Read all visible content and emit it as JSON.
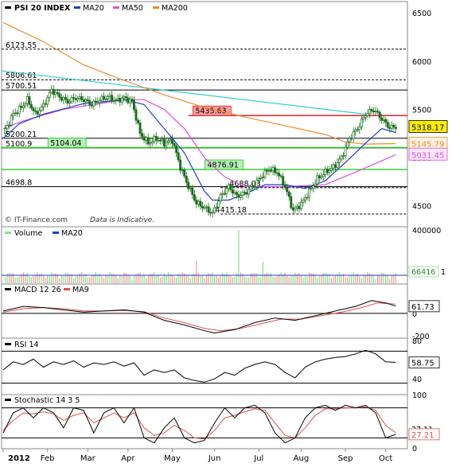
{
  "chart_data": [
    {
      "type": "candlestick",
      "title": "PSI 20 INDEX",
      "legend": [
        {
          "name": "PSI 20 INDEX",
          "color": "#000000"
        },
        {
          "name": "MA20",
          "color": "#1c3fd6"
        },
        {
          "name": "MA50",
          "color": "#e14fe1"
        },
        {
          "name": "MA200",
          "color": "#f08a2a"
        }
      ],
      "ylim": [
        4300,
        6600
      ],
      "y_ticks": [
        4500,
        5000,
        5500,
        6000,
        6500
      ],
      "x_ticks": [
        "2012",
        "Feb",
        "Mar",
        "Apr",
        "May",
        "Jun",
        "Jul",
        "Aug",
        "Sep",
        "Oct"
      ],
      "levels": [
        {
          "label": "6123.55",
          "value": 6123.55,
          "color": "#000000",
          "dashed": true
        },
        {
          "label": "5806.61",
          "value": 5806.61,
          "color": "#000000",
          "dashed": true
        },
        {
          "label": "5700.51",
          "value": 5700.51,
          "color": "#000000",
          "dashed": false
        },
        {
          "label": "5200.21",
          "value": 5200.21,
          "color": "#000000",
          "dashed": false
        },
        {
          "label": "5100.9",
          "value": 5100.9,
          "color": "#000000",
          "dashed": false
        },
        {
          "label": "4698.8",
          "value": 4698.8,
          "color": "#000000",
          "dashed": false
        },
        {
          "label": "5435.63",
          "value": 5435.63,
          "color": "#e52222",
          "dashed": false
        },
        {
          "label": "5104.04",
          "value": 5104.04,
          "color": "#22cc22",
          "dashed": false
        },
        {
          "label": "4876.91",
          "value": 4876.91,
          "color": "#22cc22",
          "dashed": false
        },
        {
          "label": "4688.08",
          "value": 4688.08,
          "color": "#000000",
          "dashed": true
        },
        {
          "label": "4415.18",
          "value": 4415.18,
          "color": "#000000",
          "dashed": true
        }
      ],
      "last_values": [
        {
          "label": "5318.17",
          "value": 5318.17,
          "bg": "#ffee00"
        },
        {
          "label": "5145.79",
          "value": 5145.79,
          "bg": "#fff2e0"
        },
        {
          "label": "5031.45",
          "value": 5031.45,
          "bg": "#fbe8fb"
        }
      ],
      "trendline": {
        "from": 5900,
        "to": 5450,
        "color": "#33cccc"
      },
      "close_path": [
        [
          0,
          5250
        ],
        [
          5,
          5450
        ],
        [
          9,
          5520
        ],
        [
          12,
          5600
        ],
        [
          16,
          5450
        ],
        [
          20,
          5540
        ],
        [
          24,
          5700
        ],
        [
          28,
          5630
        ],
        [
          32,
          5580
        ],
        [
          36,
          5620
        ],
        [
          40,
          5600
        ],
        [
          44,
          5550
        ],
        [
          48,
          5600
        ],
        [
          52,
          5630
        ],
        [
          56,
          5590
        ],
        [
          60,
          5620
        ],
        [
          64,
          5580
        ],
        [
          68,
          5250
        ],
        [
          72,
          5150
        ],
        [
          76,
          5200
        ],
        [
          80,
          5150
        ],
        [
          84,
          5180
        ],
        [
          88,
          4900
        ],
        [
          92,
          4700
        ],
        [
          96,
          4530
        ],
        [
          100,
          4480
        ],
        [
          104,
          4420
        ],
        [
          108,
          4600
        ],
        [
          112,
          4700
        ],
        [
          116,
          4600
        ],
        [
          120,
          4630
        ],
        [
          124,
          4700
        ],
        [
          128,
          4800
        ],
        [
          132,
          4880
        ],
        [
          136,
          4850
        ],
        [
          140,
          4700
        ],
        [
          144,
          4450
        ],
        [
          148,
          4520
        ],
        [
          152,
          4650
        ],
        [
          156,
          4780
        ],
        [
          160,
          4850
        ],
        [
          164,
          4900
        ],
        [
          168,
          5000
        ],
        [
          172,
          5200
        ],
        [
          176,
          5300
        ],
        [
          180,
          5450
        ],
        [
          184,
          5500
        ],
        [
          188,
          5400
        ],
        [
          192,
          5310
        ],
        [
          195,
          5318
        ]
      ],
      "ma20_path": [
        [
          0,
          5200
        ],
        [
          8,
          5350
        ],
        [
          20,
          5450
        ],
        [
          40,
          5560
        ],
        [
          60,
          5600
        ],
        [
          70,
          5550
        ],
        [
          80,
          5300
        ],
        [
          90,
          5050
        ],
        [
          100,
          4650
        ],
        [
          104,
          4560
        ],
        [
          112,
          4560
        ],
        [
          120,
          4620
        ],
        [
          130,
          4720
        ],
        [
          140,
          4720
        ],
        [
          150,
          4680
        ],
        [
          160,
          4760
        ],
        [
          170,
          4950
        ],
        [
          180,
          5150
        ],
        [
          188,
          5300
        ],
        [
          195,
          5260
        ]
      ],
      "ma50_path": [
        [
          0,
          5300
        ],
        [
          10,
          5380
        ],
        [
          30,
          5500
        ],
        [
          60,
          5600
        ],
        [
          70,
          5600
        ],
        [
          80,
          5500
        ],
        [
          90,
          5300
        ],
        [
          100,
          5000
        ],
        [
          110,
          4800
        ],
        [
          120,
          4700
        ],
        [
          140,
          4700
        ],
        [
          160,
          4720
        ],
        [
          175,
          4850
        ],
        [
          195,
          5030
        ]
      ],
      "ma200_path": [
        [
          0,
          6400
        ],
        [
          20,
          6200
        ],
        [
          40,
          5960
        ],
        [
          60,
          5800
        ],
        [
          80,
          5650
        ],
        [
          100,
          5520
        ],
        [
          120,
          5420
        ],
        [
          140,
          5330
        ],
        [
          160,
          5240
        ],
        [
          170,
          5160
        ],
        [
          180,
          5140
        ],
        [
          195,
          5145
        ]
      ],
      "footer": [
        "© IT-Finance.com",
        "Data is Indicative."
      ]
    },
    {
      "type": "bar",
      "title": "Volume",
      "legend": [
        {
          "name": "Volume",
          "color": "#8fdc8f"
        },
        {
          "name": "MA20",
          "color": "#1c3fd6"
        }
      ],
      "ylim": [
        0,
        400000
      ],
      "y_ticks": [
        "400000"
      ],
      "last_value": "66416",
      "last_value_extra": "1",
      "spikes": [
        {
          "x": 96,
          "value": 170000,
          "color": "#f09a9a"
        },
        {
          "x": 117,
          "value": 400000,
          "color": "#8fdc8f"
        },
        {
          "x": 129,
          "value": 160000,
          "color": "#8fdc8f"
        }
      ],
      "ma20_level": 60000
    },
    {
      "type": "line",
      "title": "MACD 12 26",
      "legend": [
        {
          "name": "MACD 12 26",
          "color": "#000000"
        },
        {
          "name": "MA9",
          "color": "#e14f4f"
        }
      ],
      "ylim": [
        -200,
        150
      ],
      "y_ticks": [
        "0",
        "-200"
      ],
      "last_value": "61.73",
      "macd_path": [
        [
          0,
          20
        ],
        [
          10,
          60
        ],
        [
          20,
          50
        ],
        [
          30,
          30
        ],
        [
          40,
          10
        ],
        [
          50,
          20
        ],
        [
          60,
          30
        ],
        [
          70,
          10
        ],
        [
          80,
          -60
        ],
        [
          90,
          -100
        ],
        [
          100,
          -150
        ],
        [
          105,
          -170
        ],
        [
          115,
          -140
        ],
        [
          125,
          -80
        ],
        [
          135,
          -40
        ],
        [
          145,
          -60
        ],
        [
          155,
          -20
        ],
        [
          165,
          20
        ],
        [
          175,
          60
        ],
        [
          183,
          110
        ],
        [
          190,
          90
        ],
        [
          195,
          62
        ]
      ],
      "ma9_path": [
        [
          0,
          10
        ],
        [
          10,
          40
        ],
        [
          20,
          50
        ],
        [
          30,
          40
        ],
        [
          40,
          20
        ],
        [
          50,
          20
        ],
        [
          60,
          25
        ],
        [
          70,
          15
        ],
        [
          80,
          -40
        ],
        [
          90,
          -80
        ],
        [
          100,
          -130
        ],
        [
          108,
          -150
        ],
        [
          118,
          -130
        ],
        [
          128,
          -90
        ],
        [
          138,
          -50
        ],
        [
          148,
          -50
        ],
        [
          158,
          -20
        ],
        [
          168,
          10
        ],
        [
          178,
          50
        ],
        [
          186,
          90
        ],
        [
          195,
          80
        ]
      ]
    },
    {
      "type": "line",
      "title": "RSI 14",
      "legend": [
        {
          "name": "RSI 14",
          "color": "#000000"
        }
      ],
      "ylim": [
        0,
        100
      ],
      "y_ticks": [
        "80",
        "40"
      ],
      "last_value": "58.75",
      "rsi_path": [
        [
          0,
          45
        ],
        [
          5,
          60
        ],
        [
          10,
          55
        ],
        [
          15,
          65
        ],
        [
          20,
          50
        ],
        [
          25,
          60
        ],
        [
          30,
          55
        ],
        [
          35,
          62
        ],
        [
          40,
          50
        ],
        [
          45,
          58
        ],
        [
          50,
          55
        ],
        [
          55,
          60
        ],
        [
          60,
          52
        ],
        [
          65,
          58
        ],
        [
          70,
          35
        ],
        [
          75,
          45
        ],
        [
          80,
          40
        ],
        [
          85,
          45
        ],
        [
          90,
          30
        ],
        [
          95,
          25
        ],
        [
          100,
          22
        ],
        [
          105,
          28
        ],
        [
          110,
          40
        ],
        [
          115,
          35
        ],
        [
          120,
          48
        ],
        [
          125,
          55
        ],
        [
          130,
          60
        ],
        [
          135,
          55
        ],
        [
          140,
          40
        ],
        [
          145,
          30
        ],
        [
          150,
          50
        ],
        [
          155,
          60
        ],
        [
          160,
          65
        ],
        [
          165,
          68
        ],
        [
          170,
          70
        ],
        [
          175,
          75
        ],
        [
          180,
          82
        ],
        [
          185,
          75
        ],
        [
          190,
          60
        ],
        [
          195,
          59
        ]
      ]
    },
    {
      "type": "line",
      "title": "Stochastic 14 3 5",
      "legend": [
        {
          "name": "Stochastic 14 3 5",
          "color": "#000000"
        }
      ],
      "ylim": [
        0,
        100
      ],
      "y_ticks": [
        "100",
        "0"
      ],
      "last_value": "27.21",
      "last_value_extra": "27.11",
      "k_path": [
        [
          0,
          30
        ],
        [
          5,
          70
        ],
        [
          10,
          80
        ],
        [
          15,
          60
        ],
        [
          20,
          80
        ],
        [
          25,
          70
        ],
        [
          30,
          40
        ],
        [
          35,
          80
        ],
        [
          40,
          75
        ],
        [
          45,
          30
        ],
        [
          50,
          70
        ],
        [
          55,
          80
        ],
        [
          60,
          50
        ],
        [
          65,
          80
        ],
        [
          70,
          20
        ],
        [
          75,
          10
        ],
        [
          80,
          40
        ],
        [
          85,
          60
        ],
        [
          90,
          20
        ],
        [
          95,
          10
        ],
        [
          100,
          15
        ],
        [
          105,
          50
        ],
        [
          110,
          80
        ],
        [
          115,
          60
        ],
        [
          120,
          80
        ],
        [
          125,
          85
        ],
        [
          130,
          70
        ],
        [
          135,
          30
        ],
        [
          140,
          10
        ],
        [
          145,
          20
        ],
        [
          150,
          60
        ],
        [
          155,
          80
        ],
        [
          160,
          85
        ],
        [
          165,
          75
        ],
        [
          170,
          85
        ],
        [
          175,
          80
        ],
        [
          180,
          85
        ],
        [
          185,
          70
        ],
        [
          190,
          20
        ],
        [
          195,
          27
        ]
      ],
      "d_path": [
        [
          0,
          35
        ],
        [
          5,
          55
        ],
        [
          10,
          70
        ],
        [
          15,
          68
        ],
        [
          20,
          72
        ],
        [
          25,
          68
        ],
        [
          30,
          55
        ],
        [
          35,
          65
        ],
        [
          40,
          70
        ],
        [
          45,
          50
        ],
        [
          50,
          60
        ],
        [
          55,
          70
        ],
        [
          60,
          60
        ],
        [
          65,
          70
        ],
        [
          70,
          40
        ],
        [
          75,
          25
        ],
        [
          80,
          30
        ],
        [
          85,
          45
        ],
        [
          90,
          35
        ],
        [
          95,
          20
        ],
        [
          100,
          18
        ],
        [
          105,
          35
        ],
        [
          110,
          60
        ],
        [
          115,
          65
        ],
        [
          120,
          72
        ],
        [
          125,
          78
        ],
        [
          130,
          75
        ],
        [
          135,
          50
        ],
        [
          140,
          25
        ],
        [
          145,
          20
        ],
        [
          150,
          40
        ],
        [
          155,
          65
        ],
        [
          160,
          78
        ],
        [
          165,
          78
        ],
        [
          170,
          80
        ],
        [
          175,
          80
        ],
        [
          180,
          82
        ],
        [
          185,
          75
        ],
        [
          190,
          45
        ],
        [
          195,
          30
        ]
      ]
    }
  ]
}
